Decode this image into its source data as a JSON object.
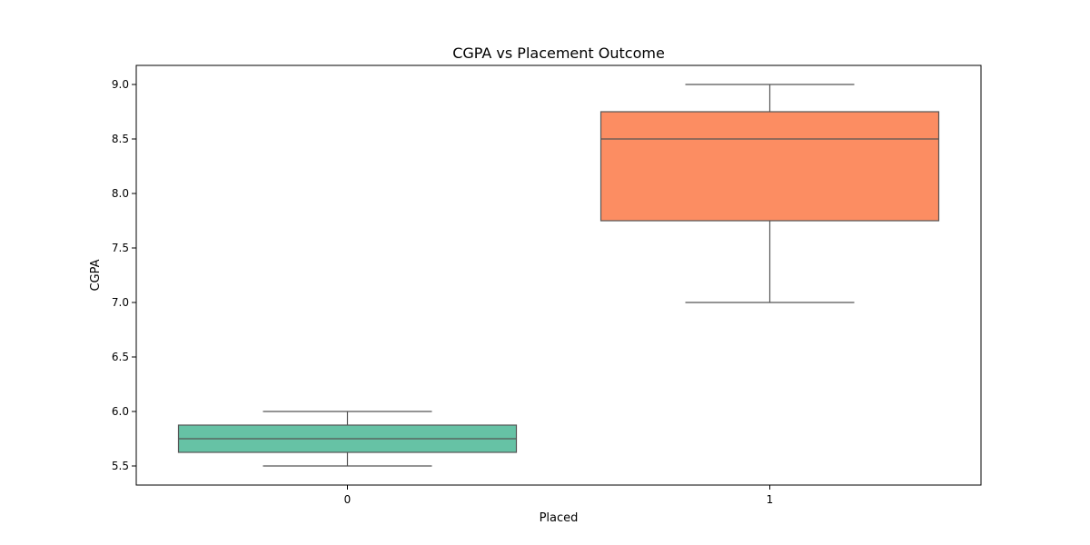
{
  "chart_data": {
    "type": "box",
    "title": "CGPA vs Placement Outcome",
    "xlabel": "Placed",
    "ylabel": "CGPA",
    "categories": [
      "0",
      "1"
    ],
    "boxes": [
      {
        "category": "0",
        "whisker_low": 5.5,
        "q1": 5.625,
        "median": 5.75,
        "q3": 5.875,
        "whisker_high": 6.0,
        "color": "#66c2a5"
      },
      {
        "category": "1",
        "whisker_low": 7.0,
        "q1": 7.75,
        "median": 8.5,
        "q3": 8.75,
        "whisker_high": 9.0,
        "color": "#fc8d62"
      }
    ],
    "ylim": [
      5.325,
      9.175
    ],
    "yticks": [
      "5.5",
      "6.0",
      "6.5",
      "7.0",
      "7.5",
      "8.0",
      "8.5",
      "9.0"
    ],
    "grid": false,
    "line_color": "#555555"
  }
}
